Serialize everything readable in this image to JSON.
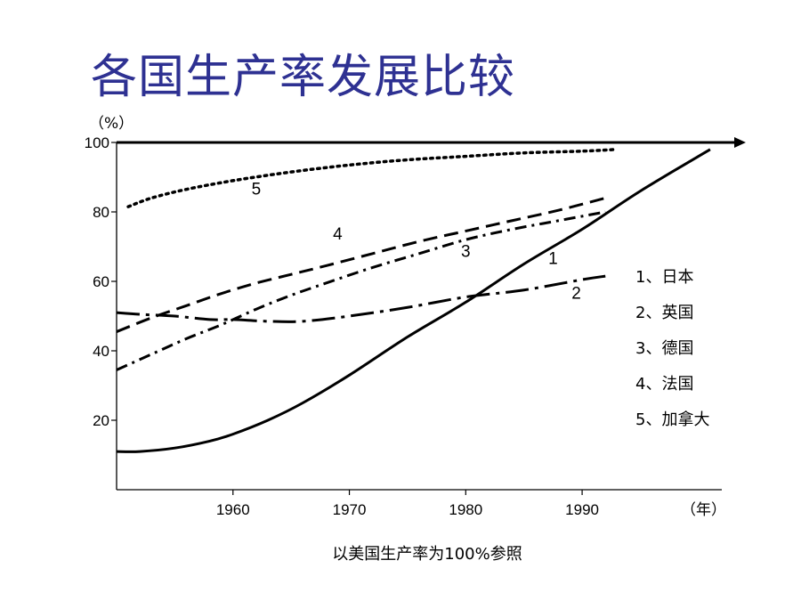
{
  "title": "各国生产率发展比较",
  "chart_data": {
    "type": "line",
    "title": "各国生产率发展比较",
    "xlabel": "（年）",
    "ylabel": "（%）",
    "caption": "以美国生产率为100%参照",
    "xlim": [
      1950,
      2002
    ],
    "ylim": [
      0,
      100
    ],
    "x_ticks": [
      1960,
      1970,
      1980,
      1990
    ],
    "y_ticks": [
      20,
      40,
      60,
      80,
      100
    ],
    "grid": false,
    "legend_position": "right",
    "legend": [
      "1、日本",
      "2、英国",
      "3、德国",
      "4、法国",
      "5、加拿大"
    ],
    "reference_line": {
      "y": 100
    },
    "series": [
      {
        "label": "1",
        "style": "solid",
        "label_at": [
          1987.5,
          65
        ],
        "x": [
          1950,
          1952,
          1955,
          1958,
          1960,
          1963,
          1966,
          1970,
          1975,
          1980,
          1985,
          1990,
          1995,
          2001
        ],
        "y": [
          11,
          11,
          12,
          14,
          16,
          20,
          25,
          33,
          44,
          54,
          65,
          75,
          86,
          98
        ]
      },
      {
        "label": "2",
        "style": "dashdot-long",
        "label_at": [
          1989.5,
          55
        ],
        "x": [
          1950,
          1952,
          1955,
          1958,
          1960,
          1963,
          1966,
          1970,
          1975,
          1980,
          1985,
          1990,
          1992
        ],
        "y": [
          51,
          50.5,
          50,
          49,
          49,
          48.5,
          48.5,
          50,
          52.5,
          55.5,
          57.5,
          60.5,
          61.5
        ]
      },
      {
        "label": "3",
        "style": "dashdot",
        "label_at": [
          1980,
          67
        ],
        "x": [
          1950,
          1953,
          1956,
          1959,
          1962,
          1965,
          1968,
          1972,
          1976,
          1980,
          1984,
          1988,
          1992
        ],
        "y": [
          34.5,
          39,
          43.5,
          47.5,
          52,
          56,
          59.5,
          64,
          68,
          72,
          75,
          77.5,
          80
        ]
      },
      {
        "label": "4",
        "style": "dashed",
        "label_at": [
          1969,
          72
        ],
        "x": [
          1950,
          1953,
          1956,
          1959,
          1962,
          1965,
          1968,
          1972,
          1976,
          1980,
          1984,
          1988,
          1992
        ],
        "y": [
          45.5,
          49.5,
          53,
          56.5,
          59.5,
          62,
          64.5,
          68,
          71.5,
          74.5,
          77.5,
          80.5,
          84
        ]
      },
      {
        "label": "5",
        "style": "dotted",
        "label_at": [
          1962,
          85
        ],
        "x": [
          1951,
          1953,
          1956,
          1960,
          1965,
          1970,
          1975,
          1980,
          1985,
          1990,
          1993
        ],
        "y": [
          81.5,
          84,
          86.5,
          89,
          91.5,
          93.5,
          95,
          96,
          97,
          97.5,
          98
        ]
      }
    ]
  }
}
